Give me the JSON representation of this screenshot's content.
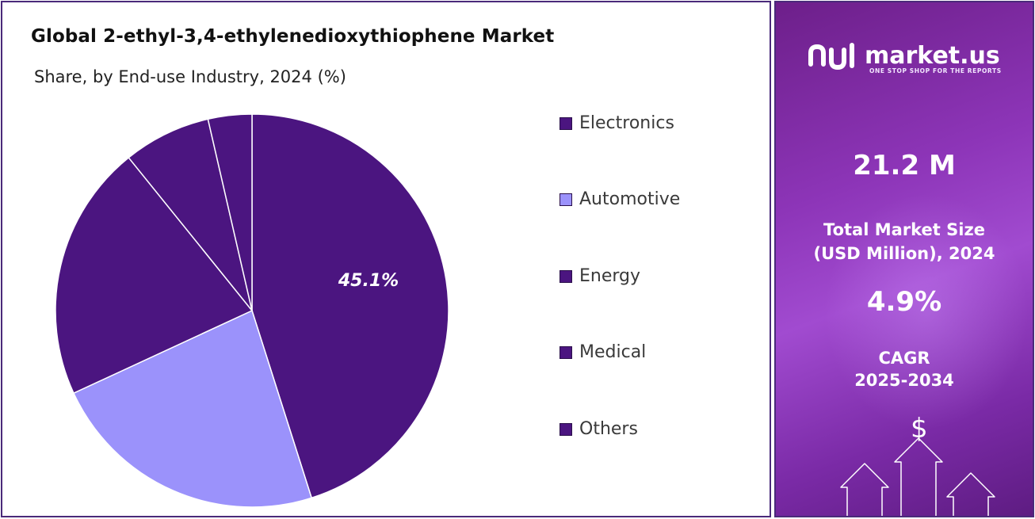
{
  "chart_data": {
    "type": "pie",
    "title": "Global 2-ethyl-3,4-ethylenedioxythiophene Market",
    "subtitle": "Share, by End-use Industry, 2024 (%)",
    "categories": [
      "Electronics",
      "Automotive",
      "Energy",
      "Medical",
      "Others"
    ],
    "values": [
      45.1,
      23.0,
      21.1,
      7.2,
      3.6
    ],
    "colors": [
      "#4b1580",
      "#9b92fb",
      "#4b1580",
      "#4b1580",
      "#4b1580"
    ],
    "labels": [
      "45.1%",
      "",
      "",
      "",
      ""
    ],
    "legend_position": "right"
  },
  "sidebar": {
    "logo_text": "market.us",
    "tagline": "ONE STOP SHOP FOR THE REPORTS",
    "market_size_value": "21.2 M",
    "market_size_label_line1": "Total Market Size",
    "market_size_label_line2": "(USD Million), 2024",
    "cagr_value": "4.9%",
    "cagr_label_line1": "CAGR",
    "cagr_label_line2": "2025-2034",
    "dollar_symbol": "$",
    "background_color": "#8d35b8"
  }
}
